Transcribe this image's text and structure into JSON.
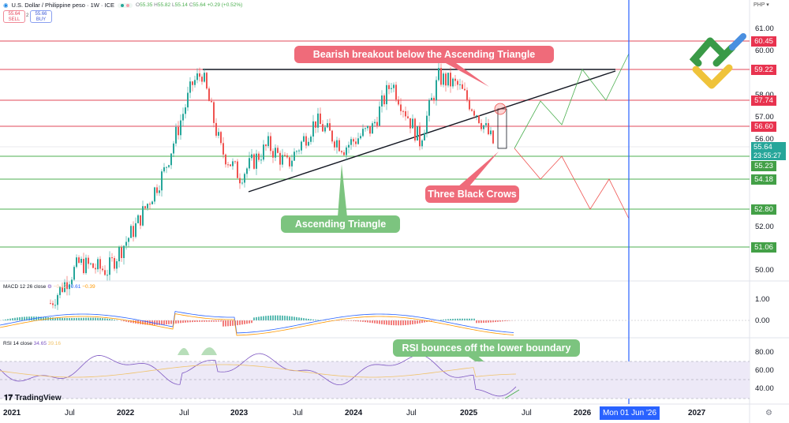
{
  "header": {
    "symbol_title": "U.S. Dollar / Philippine peso · 1W · ICE",
    "ohlc": {
      "o_label": "O",
      "o": "55.35",
      "h_label": "H",
      "h": "55.82",
      "l_label": "L",
      "l": "55.14",
      "c_label": "C",
      "c": "55.64",
      "change": "+0.29 (+0.52%)"
    },
    "sell": {
      "price": "55.64",
      "label": "SELL"
    },
    "buy": {
      "price": "55.66",
      "label": "BUY"
    },
    "spread": "2",
    "currency_selector": "PHP"
  },
  "colors": {
    "bull": "#26a69a",
    "bear": "#ef5350",
    "resistance": "#e0485a",
    "support": "#4caf50",
    "cursor_line": "#2962ff",
    "callout_red": "#ef6b7a",
    "callout_green": "#7cc47f",
    "rsi_band": "#ede9f7",
    "macd_line": "#2962ff",
    "signal_line": "#ff9800"
  },
  "price_axis": {
    "ticks": [
      "61.00",
      "60.00",
      "58.00",
      "57.00",
      "56.00",
      "52.00",
      "50.00"
    ],
    "resistance_tags": [
      "60.45",
      "59.22",
      "57.74",
      "56.60"
    ],
    "support_tags": [
      "55.23",
      "54.18",
      "52.80",
      "51.06"
    ],
    "current_price": "55.64",
    "countdown": "23:55:27"
  },
  "time_axis": {
    "labels": [
      {
        "text": "2021",
        "bold": true
      },
      {
        "text": "Jul",
        "bold": false
      },
      {
        "text": "2022",
        "bold": true
      },
      {
        "text": "Jul",
        "bold": false
      },
      {
        "text": "2023",
        "bold": true
      },
      {
        "text": "Jul",
        "bold": false
      },
      {
        "text": "2024",
        "bold": true
      },
      {
        "text": "Jul",
        "bold": false
      },
      {
        "text": "2025",
        "bold": true
      },
      {
        "text": "Jul",
        "bold": false
      },
      {
        "text": "2026",
        "bold": true
      },
      {
        "text": "2027",
        "bold": true
      }
    ],
    "cursor_date": "Mon 01 Jun '26"
  },
  "annotations": {
    "bearish_breakout": "Bearish breakout below the Ascending Triangle",
    "ascending_triangle": "Ascending Triangle",
    "three_black_crows": "Three Black Crows",
    "rsi_bounce": "RSI bounces off the lower boundary"
  },
  "macd": {
    "label": "MACD 12 26 close",
    "hist": "−0.22",
    "macd": "−0.61",
    "signal": "−0.39",
    "ticks": [
      "1.00",
      "0.00"
    ]
  },
  "rsi": {
    "label": "RSI 14 close",
    "value": "34.65",
    "ma": "39.16",
    "ticks": [
      "80.00",
      "60.00",
      "40.00"
    ]
  },
  "branding": {
    "tradingview": "TradingView"
  },
  "chart_data": {
    "type": "candlestick",
    "title": "U.S. Dollar / Philippine peso - 1W - ICE",
    "xlabel": "",
    "ylabel": "PHP",
    "x_ticks": [
      "2021",
      "Jul",
      "2022",
      "Jul",
      "2023",
      "Jul",
      "2024",
      "Jul",
      "2025",
      "Jul",
      "2026",
      "2027"
    ],
    "ylim": [
      49.5,
      61.5
    ],
    "grid": false,
    "horizontal_levels": {
      "resistance": [
        60.45,
        59.22,
        57.74,
        56.6
      ],
      "support": [
        55.23,
        54.18,
        52.8,
        51.06
      ]
    },
    "approx_close_path": [
      {
        "x": "2021-06",
        "y": 48.5
      },
      {
        "x": "2021-09",
        "y": 50.3
      },
      {
        "x": "2021-12",
        "y": 50.0
      },
      {
        "x": "2022-03",
        "y": 52.0
      },
      {
        "x": "2022-06",
        "y": 54.5
      },
      {
        "x": "2022-09",
        "y": 58.5
      },
      {
        "x": "2022-10",
        "y": 59.0
      },
      {
        "x": "2022-12",
        "y": 55.5
      },
      {
        "x": "2023-02",
        "y": 54.3
      },
      {
        "x": "2023-05",
        "y": 55.7
      },
      {
        "x": "2023-07",
        "y": 54.8
      },
      {
        "x": "2023-10",
        "y": 56.8
      },
      {
        "x": "2024-01",
        "y": 55.6
      },
      {
        "x": "2024-04",
        "y": 56.5
      },
      {
        "x": "2024-06",
        "y": 58.6
      },
      {
        "x": "2024-09",
        "y": 55.9
      },
      {
        "x": "2024-11",
        "y": 58.8
      },
      {
        "x": "2025-01",
        "y": 58.4
      },
      {
        "x": "2025-03",
        "y": 57.2
      },
      {
        "x": "2025-05",
        "y": 55.6
      }
    ],
    "triangle": {
      "top": 59.22,
      "lower_trendline_start": {
        "x": "2023-01",
        "y": 54.2
      },
      "lower_trendline_end": {
        "x": "2026-03",
        "y": 59.1
      }
    },
    "projections": {
      "bullish": [
        55.6,
        57.74,
        56.6,
        59.22,
        57.74,
        60.45
      ],
      "bearish": [
        55.6,
        54.18,
        55.23,
        52.8,
        54.18,
        51.06
      ]
    },
    "indicators": {
      "macd": {
        "params": "12 26 close",
        "histogram": -0.22,
        "macd": -0.61,
        "signal": -0.39
      },
      "rsi": {
        "params": "14 close",
        "value": 34.65,
        "ma": 39.16,
        "bands": [
          70,
          30
        ]
      }
    }
  }
}
